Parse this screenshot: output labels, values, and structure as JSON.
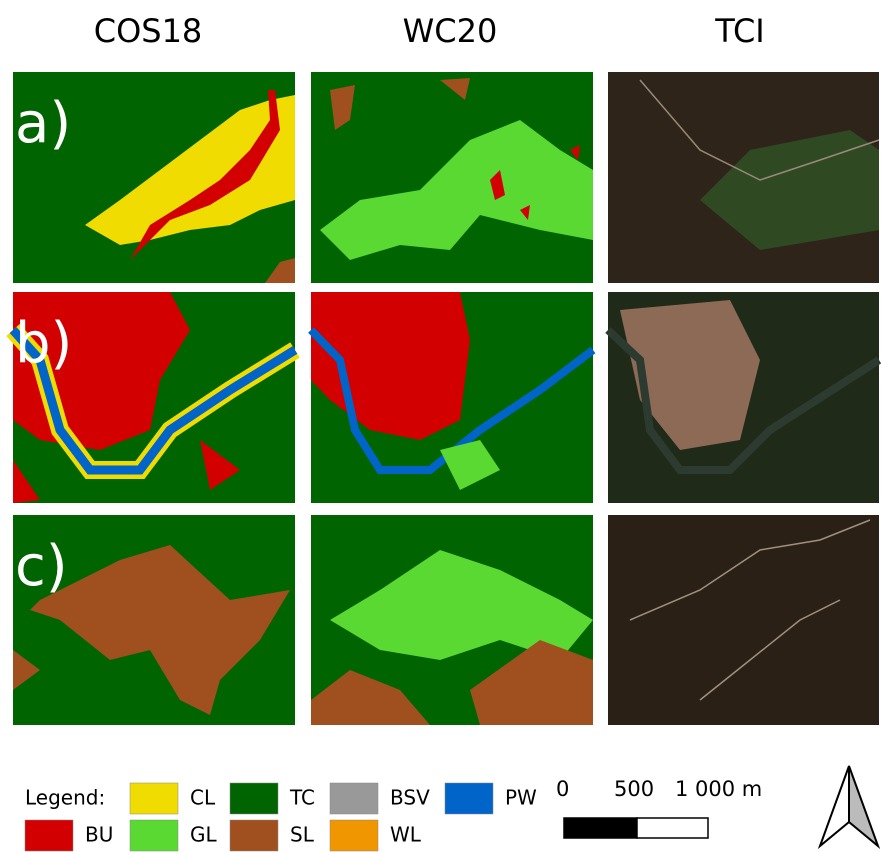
{
  "headers": [
    "COS18",
    "WC20",
    "TCI"
  ],
  "row_labels": [
    "a)",
    "b)",
    "c)"
  ],
  "legend": {
    "title": "Legend:",
    "items": [
      {
        "code": "CL",
        "color": "#f0dc00"
      },
      {
        "code": "TC",
        "color": "#006400"
      },
      {
        "code": "BSV",
        "color": "#999999"
      },
      {
        "code": "PW",
        "color": "#0064c8"
      },
      {
        "code": "BU",
        "color": "#d20000"
      },
      {
        "code": "GL",
        "color": "#5ad932"
      },
      {
        "code": "SL",
        "color": "#a0501e"
      },
      {
        "code": "WL",
        "color": "#f09600"
      }
    ]
  },
  "scale_bar": {
    "labels": [
      "0",
      "500",
      "1 000 m"
    ]
  }
}
